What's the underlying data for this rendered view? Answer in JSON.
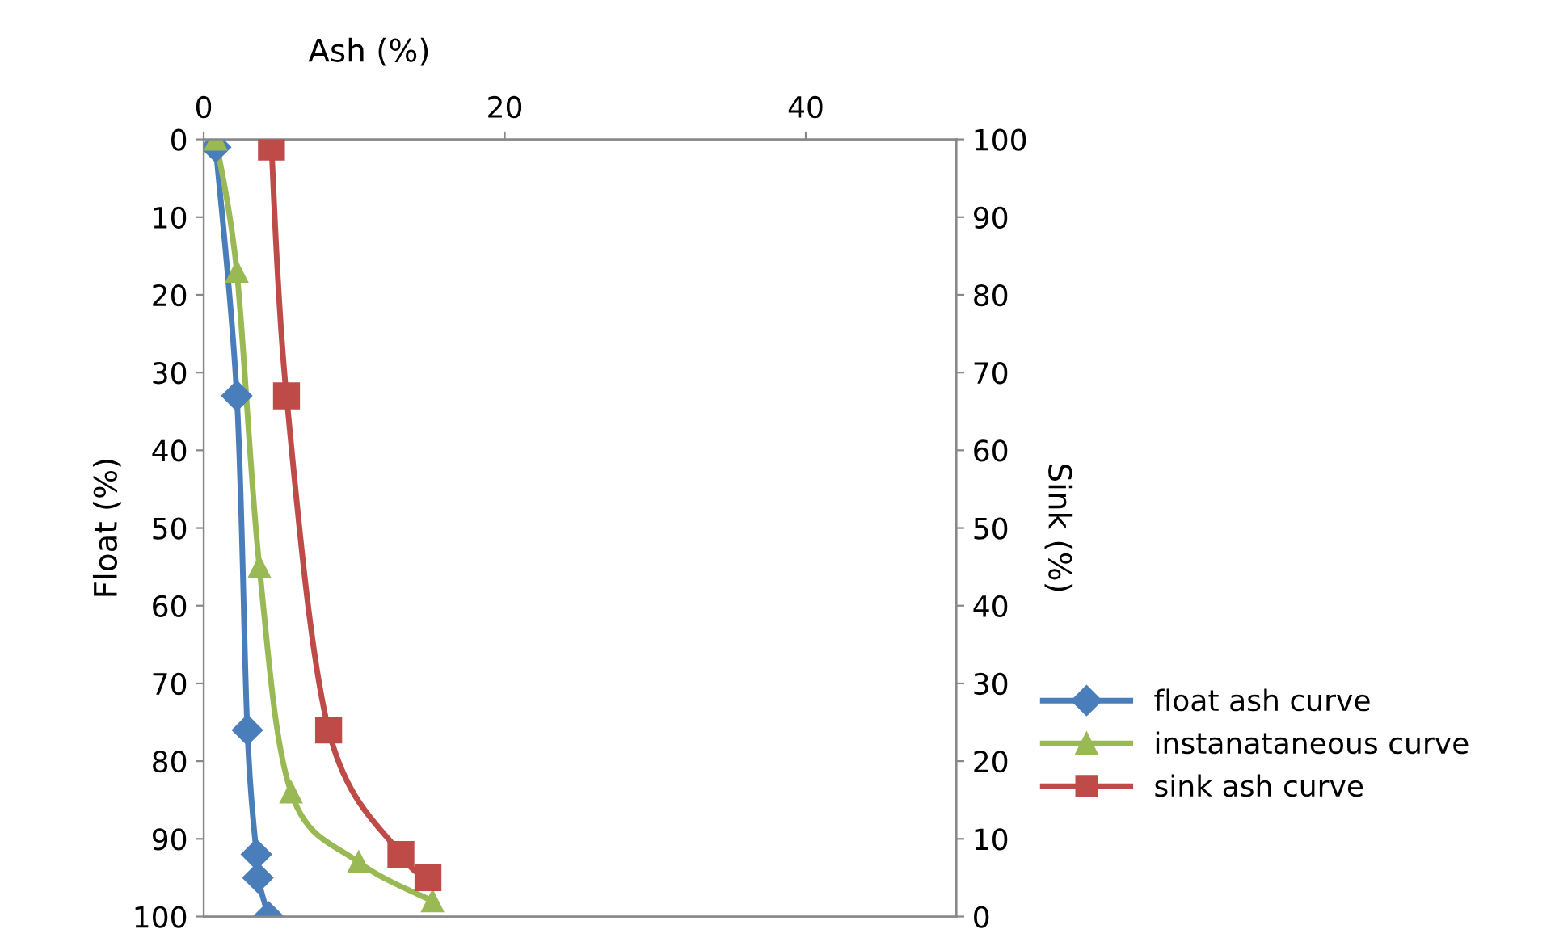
{
  "chart_data": {
    "type": "line",
    "xlabel": "Ash (%)",
    "ylabel": "Float (%)",
    "y2label": "Sink (%)",
    "xlim": [
      0,
      50
    ],
    "xticks": [
      0,
      20,
      40
    ],
    "ylim": [
      100,
      0
    ],
    "yticks": [
      0,
      10,
      20,
      30,
      40,
      50,
      60,
      70,
      80,
      90,
      100
    ],
    "y2lim": [
      0,
      100
    ],
    "y2ticks": [
      0,
      10,
      20,
      30,
      40,
      50,
      60,
      70,
      80,
      90,
      100
    ],
    "legend": "right",
    "grid": false,
    "line_style": "solid",
    "series": [
      {
        "name": "float ash curve",
        "color": "#4a7ebb",
        "marker": "diamond",
        "x": [
          0.8,
          2.2,
          2.9,
          3.5,
          3.6,
          4.3
        ],
        "values": [
          1,
          33,
          76,
          92,
          95,
          100
        ]
      },
      {
        "name": "instanataneous curve",
        "color": "#98b954",
        "marker": "triangle",
        "x": [
          0.8,
          2.2,
          3.7,
          5.8,
          10.3,
          15.2
        ],
        "values": [
          0,
          17,
          55,
          84,
          93,
          98
        ]
      },
      {
        "name": "sink ash curve",
        "color": "#be4b48",
        "marker": "square",
        "axis": "y2",
        "x": [
          4.5,
          5.5,
          8.3,
          13.1,
          14.9
        ],
        "values": [
          99,
          67,
          24,
          8,
          5
        ]
      }
    ]
  }
}
